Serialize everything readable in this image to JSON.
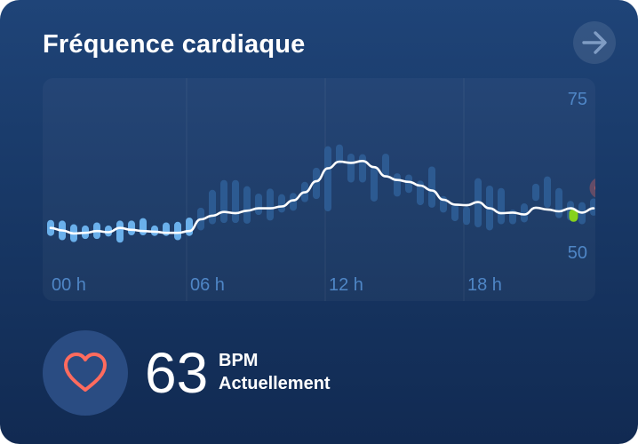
{
  "card": {
    "title": "Fréquence cardiaque"
  },
  "nav": {
    "icon": "arrow-right-icon"
  },
  "colors": {
    "line": "#ffffff",
    "range_low": "#6fb6f2",
    "range_high": "#2f5f98",
    "current_marker": "#ff6b5e",
    "current_bar": "#86d21c",
    "axis_text": "#4f86c6",
    "heart": "#ff6b5e"
  },
  "chart_data": {
    "type": "line",
    "y_ticks": [
      "75",
      "50"
    ],
    "x_ticks": [
      "00 h",
      "06 h",
      "12 h",
      "18 h"
    ],
    "ylim": [
      50,
      75
    ],
    "xlim": [
      0,
      24
    ],
    "grid": "vertical",
    "series": [
      {
        "values": [
          [
            0.0,
            53.8
          ],
          [
            0.5,
            53.4
          ],
          [
            1.0,
            52.9
          ],
          [
            1.5,
            53.0
          ],
          [
            2.0,
            53.3
          ],
          [
            2.5,
            53.1
          ],
          [
            3.0,
            53.8
          ],
          [
            3.5,
            53.5
          ],
          [
            4.0,
            53.3
          ],
          [
            4.5,
            53.2
          ],
          [
            5.0,
            53.0
          ],
          [
            5.5,
            53.0
          ],
          [
            6.0,
            53.3
          ],
          [
            6.5,
            55.2
          ],
          [
            7.0,
            55.8
          ],
          [
            7.5,
            56.4
          ],
          [
            8.0,
            56.2
          ],
          [
            8.5,
            56.6
          ],
          [
            9.0,
            57.0
          ],
          [
            9.5,
            57.0
          ],
          [
            10.0,
            57.3
          ],
          [
            10.5,
            58.3
          ],
          [
            11.0,
            59.6
          ],
          [
            11.5,
            61.4
          ],
          [
            12.0,
            63.5
          ],
          [
            12.5,
            64.6
          ],
          [
            13.0,
            64.4
          ],
          [
            13.5,
            64.7
          ],
          [
            14.0,
            63.7
          ],
          [
            14.5,
            62.2
          ],
          [
            15.0,
            61.6
          ],
          [
            15.5,
            61.3
          ],
          [
            16.0,
            60.7
          ],
          [
            16.5,
            59.9
          ],
          [
            17.0,
            58.4
          ],
          [
            17.5,
            57.6
          ],
          [
            18.0,
            57.5
          ],
          [
            18.5,
            58.0
          ],
          [
            19.0,
            57.0
          ],
          [
            19.5,
            56.2
          ],
          [
            20.0,
            56.3
          ],
          [
            20.5,
            56.0
          ],
          [
            21.0,
            57.1
          ],
          [
            21.5,
            56.8
          ],
          [
            22.0,
            56.5
          ],
          [
            22.5,
            57.0
          ],
          [
            23.0,
            56.3
          ],
          [
            23.5,
            57.0
          ]
        ]
      }
    ],
    "ranges": [
      [
        0.0,
        52.5,
        55.1
      ],
      [
        0.5,
        51.8,
        55.0
      ],
      [
        1.0,
        51.5,
        54.4
      ],
      [
        1.5,
        52.0,
        54.2
      ],
      [
        2.0,
        52.0,
        54.7
      ],
      [
        2.5,
        52.4,
        54.2
      ],
      [
        3.0,
        51.4,
        55.0
      ],
      [
        3.5,
        52.6,
        55.0
      ],
      [
        4.0,
        52.6,
        55.4
      ],
      [
        4.5,
        52.5,
        54.2
      ],
      [
        5.0,
        52.5,
        54.7
      ],
      [
        5.5,
        51.8,
        54.8
      ],
      [
        6.0,
        52.5,
        55.5
      ],
      [
        6.5,
        53.4,
        57.1
      ],
      [
        7.0,
        54.4,
        60.0
      ],
      [
        7.5,
        54.6,
        61.6
      ],
      [
        8.0,
        54.6,
        61.6
      ],
      [
        8.5,
        54.5,
        60.6
      ],
      [
        9.0,
        55.9,
        59.4
      ],
      [
        9.5,
        55.0,
        60.2
      ],
      [
        10.0,
        56.3,
        59.3
      ],
      [
        10.5,
        56.6,
        59.5
      ],
      [
        11.0,
        58.0,
        61.3
      ],
      [
        11.5,
        58.5,
        63.6
      ],
      [
        12.0,
        56.5,
        67.1
      ],
      [
        12.5,
        64.2,
        67.4
      ],
      [
        13.0,
        61.2,
        65.9
      ],
      [
        13.5,
        61.2,
        65.8
      ],
      [
        14.0,
        58.1,
        63.8
      ],
      [
        14.5,
        62.0,
        65.9
      ],
      [
        15.0,
        58.9,
        62.7
      ],
      [
        15.5,
        59.5,
        62.5
      ],
      [
        16.0,
        57.5,
        61.5
      ],
      [
        16.5,
        57.1,
        63.8
      ],
      [
        17.0,
        56.3,
        59.0
      ],
      [
        17.5,
        54.9,
        57.7
      ],
      [
        18.0,
        54.3,
        57.3
      ],
      [
        18.5,
        53.9,
        61.9
      ],
      [
        19.0,
        53.4,
        60.7
      ],
      [
        19.5,
        54.4,
        60.3
      ],
      [
        20.0,
        54.4,
        56.8
      ],
      [
        20.5,
        54.7,
        57.8
      ],
      [
        21.0,
        58.2,
        61.0
      ],
      [
        21.5,
        57.1,
        62.2
      ],
      [
        22.0,
        55.4,
        60.3
      ],
      [
        22.5,
        55.0,
        58.2
      ],
      [
        23.0,
        54.4,
        58.0
      ],
      [
        23.5,
        55.8,
        58.6
      ]
    ],
    "current": {
      "x": 23.75,
      "y": 60.3
    },
    "current_bar": {
      "x": 22.75,
      "low": 54.8,
      "high": 56.9
    }
  },
  "summary": {
    "value": "63",
    "unit": "BPM",
    "caption": "Actuellement",
    "icon": "heart-outline-icon"
  }
}
